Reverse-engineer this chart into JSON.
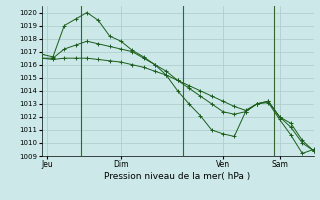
{
  "background_color": "#cce8e8",
  "grid_color": "#aacccc",
  "line_color": "#1a5e1a",
  "day_line_color": "#336633",
  "title": "Pression niveau de la mer( hPa )",
  "ylim": [
    1009,
    1020.5
  ],
  "yticks": [
    1009,
    1010,
    1011,
    1012,
    1013,
    1014,
    1015,
    1016,
    1017,
    1018,
    1019,
    1020
  ],
  "xlim": [
    0,
    24
  ],
  "day_positions": [
    0.5,
    7,
    16,
    21
  ],
  "day_labels": [
    "Jeu",
    "Dim",
    "Ven",
    "Sam"
  ],
  "day_vlines": [
    3.5,
    12.5,
    20.5
  ],
  "series": [
    [
      1016.8,
      1016.6,
      1019.0,
      1019.5,
      1020.0,
      1019.4,
      1018.2,
      1017.8,
      1017.1,
      1016.6,
      1016.0,
      1015.2,
      1014.0,
      1013.0,
      1012.1,
      1011.0,
      1010.7,
      1010.5,
      1012.4,
      1013.0,
      1013.1,
      1011.8,
      1010.6,
      1009.2,
      1009.5
    ],
    [
      1016.5,
      1016.5,
      1017.2,
      1017.5,
      1017.8,
      1017.6,
      1017.4,
      1017.2,
      1017.0,
      1016.5,
      1016.0,
      1015.5,
      1014.8,
      1014.2,
      1013.6,
      1013.0,
      1012.4,
      1012.2,
      1012.4,
      1013.0,
      1013.2,
      1012.0,
      1011.2,
      1010.0,
      1009.4
    ],
    [
      1016.5,
      1016.4,
      1016.5,
      1016.5,
      1016.5,
      1016.4,
      1016.3,
      1016.2,
      1016.0,
      1015.8,
      1015.5,
      1015.2,
      1014.8,
      1014.4,
      1014.0,
      1013.6,
      1013.2,
      1012.8,
      1012.5,
      1013.0,
      1013.2,
      1012.0,
      1011.5,
      1010.2,
      1009.4
    ]
  ]
}
